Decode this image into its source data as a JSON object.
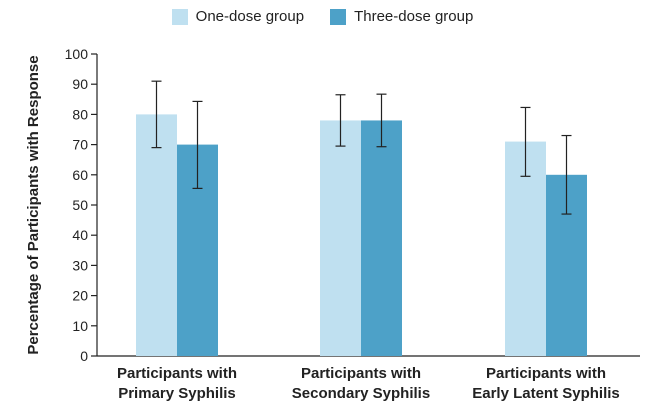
{
  "chart_data": {
    "type": "bar",
    "ylabel": "Percentage of Participants with Response",
    "ylim": [
      0,
      100
    ],
    "yticks": [
      0,
      10,
      20,
      30,
      40,
      50,
      60,
      70,
      80,
      90,
      100
    ],
    "categories": [
      [
        "Participants with",
        "Primary Syphilis"
      ],
      [
        "Participants with",
        "Secondary Syphilis"
      ],
      [
        "Participants with",
        "Early Latent Syphilis"
      ]
    ],
    "series": [
      {
        "name": "One-dose group",
        "color": "#bfe0f0",
        "values": [
          80,
          78,
          71
        ],
        "error_low": [
          69,
          69.5,
          59.5
        ],
        "error_high": [
          91,
          86.5,
          82.3
        ]
      },
      {
        "name": "Three-dose group",
        "color": "#4da1c8",
        "values": [
          70,
          78,
          60
        ],
        "error_low": [
          55.5,
          69.3,
          47
        ],
        "error_high": [
          84.3,
          86.7,
          73
        ]
      }
    ],
    "legend_position": "top-center",
    "grid": false
  }
}
